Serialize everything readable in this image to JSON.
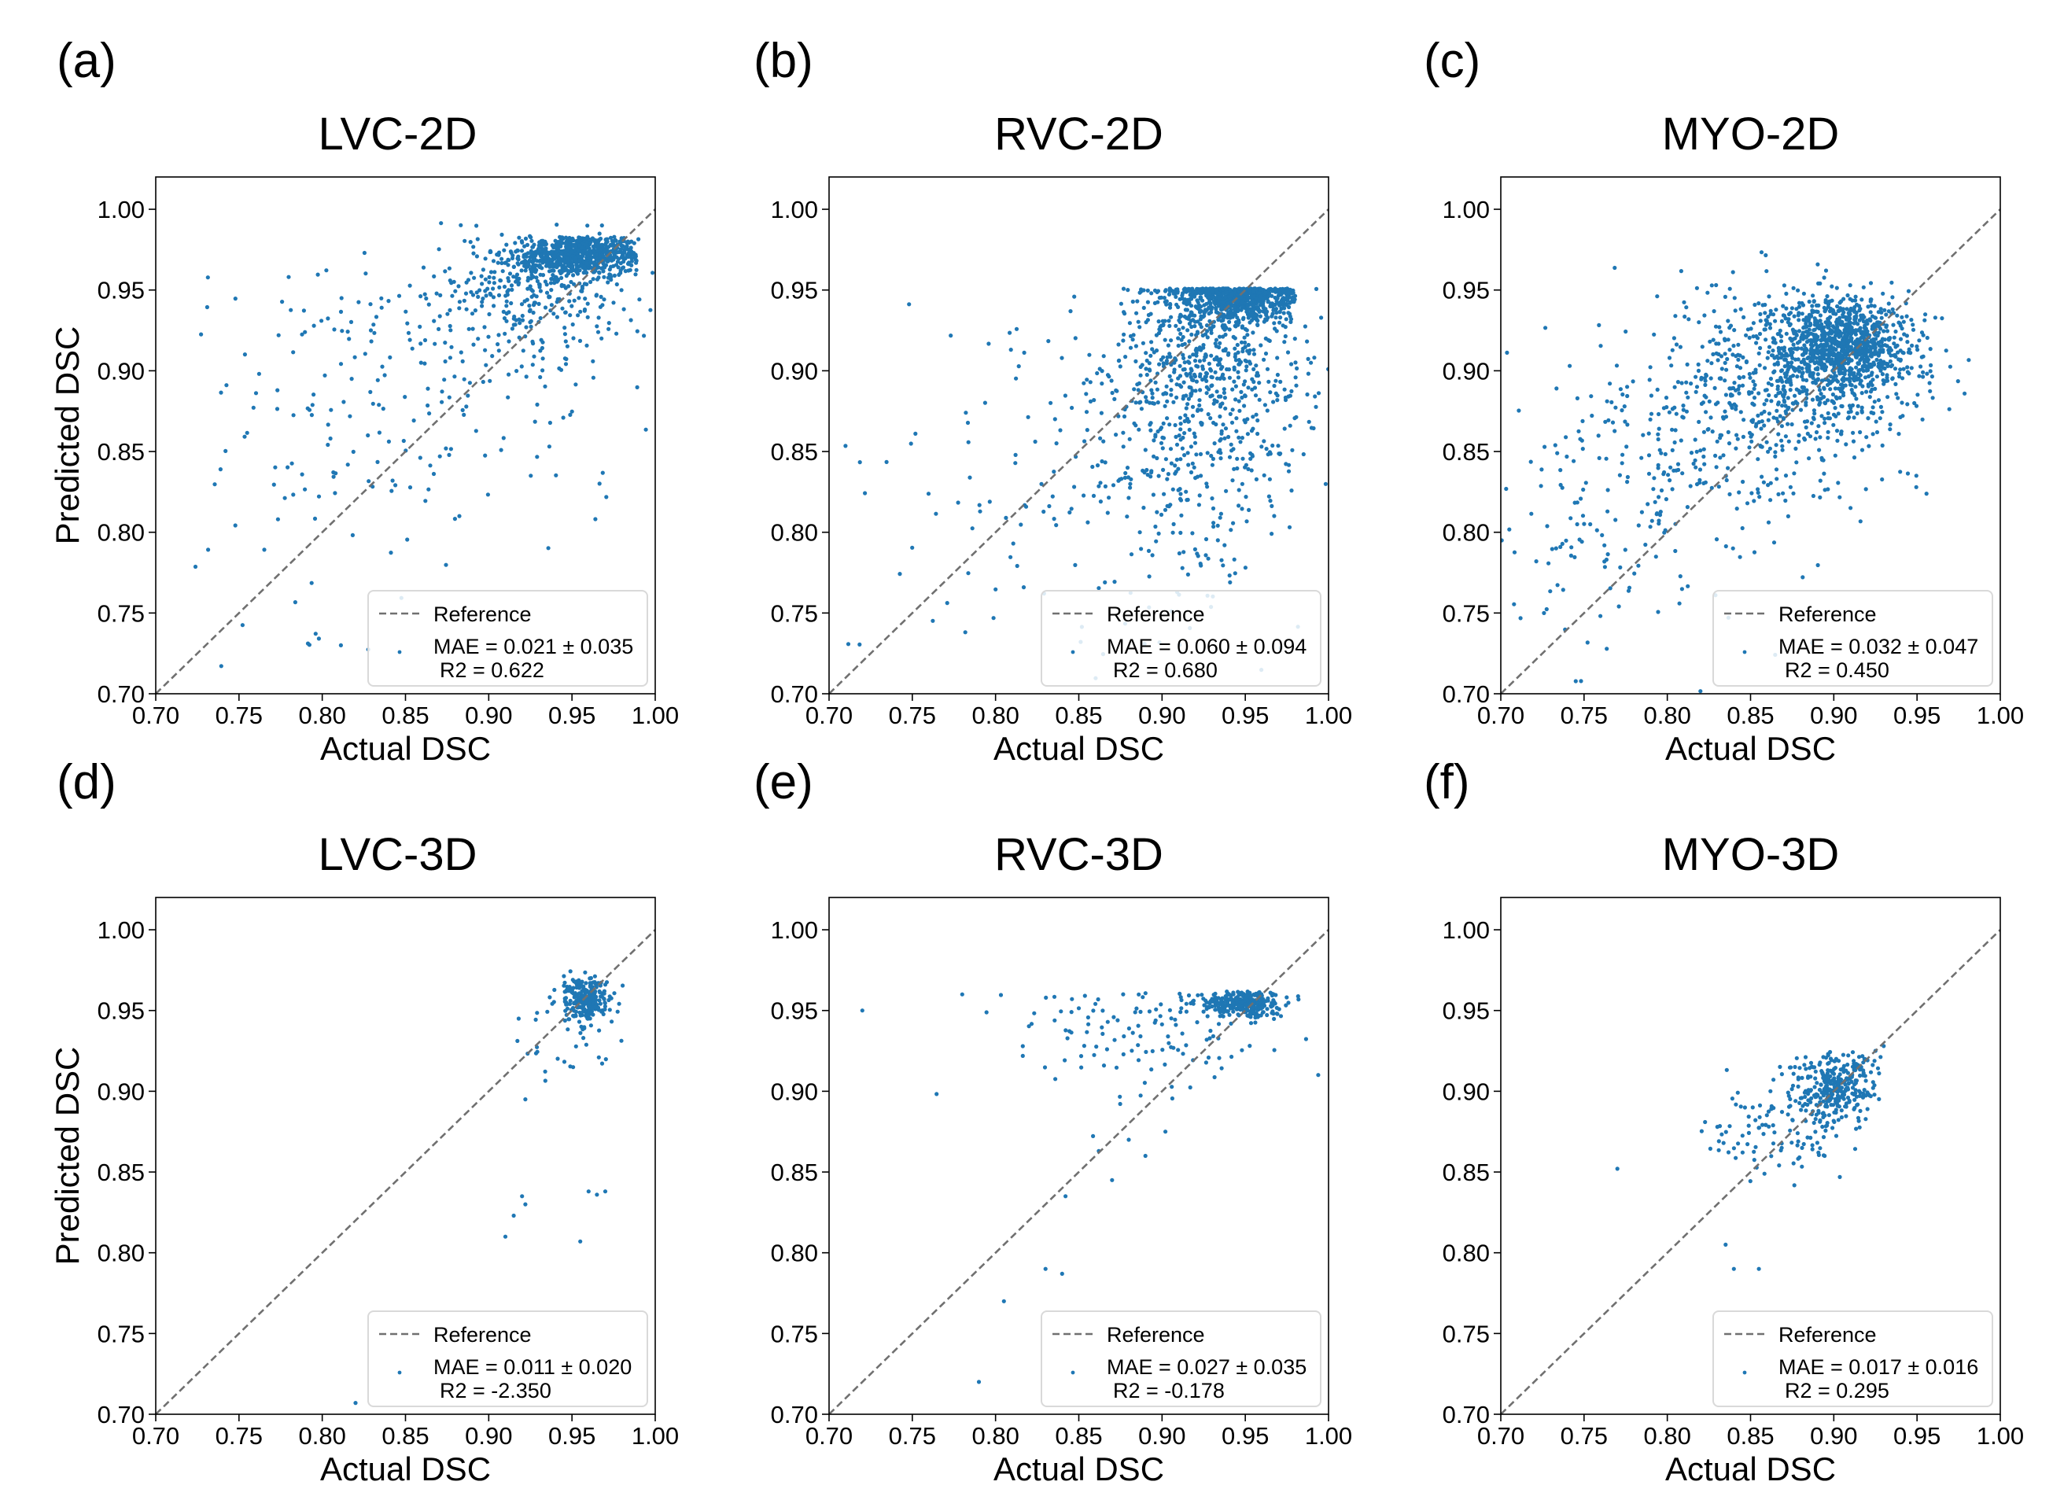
{
  "figure": {
    "colors": {
      "point": "#1f77b4",
      "reference": "#707070",
      "axis": "#000000",
      "legend_border": "#d9d9d9"
    },
    "tick_values": [
      "0.70",
      "0.75",
      "0.80",
      "0.85",
      "0.90",
      "0.95",
      "1.00"
    ],
    "xlabel": "Actual DSC",
    "ylabel": "Predicted DSC",
    "reference_label": "Reference"
  },
  "chart_data": [
    {
      "type": "scatter",
      "panel": "(a)",
      "title": "LVC-2D",
      "xlabel": "Actual DSC",
      "ylabel": "Predicted DSC",
      "xlim": [
        0.7,
        1.0
      ],
      "ylim": [
        0.7,
        1.02
      ],
      "mae": "MAE = 0.021 ± 0.035",
      "r2": "R2 = 0.622",
      "show_xlabel": true,
      "show_ylabel": true,
      "clusters": [
        {
          "cx": 0.955,
          "cy": 0.972,
          "sx": 0.018,
          "sy": 0.006,
          "n": 700,
          "ymax": 0.983,
          "xmax": 0.99
        },
        {
          "cx": 0.925,
          "cy": 0.95,
          "sx": 0.03,
          "sy": 0.018,
          "n": 320
        },
        {
          "cx": 0.87,
          "cy": 0.9,
          "sx": 0.06,
          "sy": 0.045,
          "n": 170
        },
        {
          "cx": 0.8,
          "cy": 0.84,
          "sx": 0.06,
          "sy": 0.06,
          "n": 70
        }
      ]
    },
    {
      "type": "scatter",
      "panel": "(b)",
      "title": "RVC-2D",
      "xlabel": "Actual DSC",
      "ylabel": "Predicted DSC",
      "xlim": [
        0.7,
        1.0
      ],
      "ylim": [
        0.7,
        1.02
      ],
      "mae": "MAE = 0.060 ± 0.094",
      "r2": "R2 = 0.680",
      "show_xlabel": true,
      "show_ylabel": false,
      "clusters": [
        {
          "cx": 0.945,
          "cy": 0.945,
          "sx": 0.02,
          "sy": 0.008,
          "n": 800,
          "ymax": 0.951,
          "xmax": 0.98
        },
        {
          "cx": 0.93,
          "cy": 0.9,
          "sx": 0.03,
          "sy": 0.03,
          "n": 520,
          "ymax": 0.951
        },
        {
          "cx": 0.91,
          "cy": 0.84,
          "sx": 0.035,
          "sy": 0.05,
          "n": 260,
          "ymax": 0.951
        },
        {
          "cx": 0.82,
          "cy": 0.83,
          "sx": 0.06,
          "sy": 0.07,
          "n": 100,
          "ymax": 0.951
        }
      ]
    },
    {
      "type": "scatter",
      "panel": "(c)",
      "title": "MYO-2D",
      "xlabel": "Actual DSC",
      "ylabel": "Predicted DSC",
      "xlim": [
        0.7,
        1.0
      ],
      "ylim": [
        0.7,
        1.02
      ],
      "mae": "MAE = 0.032 ± 0.047",
      "r2": "R2 = 0.450",
      "show_xlabel": true,
      "show_ylabel": false,
      "clusters": [
        {
          "cx": 0.905,
          "cy": 0.915,
          "sx": 0.02,
          "sy": 0.015,
          "n": 1000,
          "ymax": 0.957
        },
        {
          "cx": 0.87,
          "cy": 0.89,
          "sx": 0.04,
          "sy": 0.03,
          "n": 550
        },
        {
          "cx": 0.8,
          "cy": 0.84,
          "sx": 0.05,
          "sy": 0.045,
          "n": 200
        },
        {
          "cx": 0.73,
          "cy": 0.8,
          "sx": 0.03,
          "sy": 0.06,
          "n": 50
        }
      ]
    },
    {
      "type": "scatter",
      "panel": "(d)",
      "title": "LVC-3D",
      "xlabel": "Actual DSC",
      "ylabel": "Predicted DSC",
      "xlim": [
        0.7,
        1.0
      ],
      "ylim": [
        0.7,
        1.02
      ],
      "mae": "MAE = 0.011 ± 0.020",
      "r2": "R2 = -2.350",
      "show_xlabel": true,
      "show_ylabel": true,
      "clusters": [
        {
          "cx": 0.958,
          "cy": 0.958,
          "sx": 0.008,
          "sy": 0.007,
          "n": 240,
          "ymax": 0.985
        },
        {
          "cx": 0.95,
          "cy": 0.93,
          "sx": 0.015,
          "sy": 0.015,
          "n": 30
        }
      ],
      "extra_points": [
        [
          0.92,
          0.835
        ],
        [
          0.922,
          0.83
        ],
        [
          0.915,
          0.823
        ],
        [
          0.91,
          0.81
        ],
        [
          0.96,
          0.838
        ],
        [
          0.965,
          0.836
        ],
        [
          0.97,
          0.838
        ],
        [
          0.955,
          0.807
        ],
        [
          0.82,
          0.707
        ],
        [
          0.918,
          0.945
        ],
        [
          0.922,
          0.895
        ]
      ]
    },
    {
      "type": "scatter",
      "panel": "(e)",
      "title": "RVC-3D",
      "xlabel": "Actual DSC",
      "ylabel": "Predicted DSC",
      "xlim": [
        0.7,
        1.0
      ],
      "ylim": [
        0.7,
        1.02
      ],
      "mae": "MAE = 0.027 ± 0.035",
      "r2": "R2 = -0.178",
      "show_xlabel": true,
      "show_ylabel": false,
      "clusters": [
        {
          "cx": 0.948,
          "cy": 0.954,
          "sx": 0.012,
          "sy": 0.004,
          "n": 300,
          "ymax": 0.962
        },
        {
          "cx": 0.89,
          "cy": 0.935,
          "sx": 0.045,
          "sy": 0.02,
          "n": 120,
          "ymax": 0.961
        }
      ],
      "extra_points": [
        [
          0.72,
          0.95
        ],
        [
          0.78,
          0.96
        ],
        [
          0.79,
          0.72
        ],
        [
          0.805,
          0.77
        ],
        [
          0.83,
          0.79
        ],
        [
          0.84,
          0.787
        ],
        [
          0.842,
          0.835
        ],
        [
          0.862,
          0.863
        ],
        [
          0.87,
          0.845
        ],
        [
          0.88,
          0.87
        ],
        [
          0.902,
          0.875
        ],
        [
          0.89,
          0.86
        ]
      ]
    },
    {
      "type": "scatter",
      "panel": "(f)",
      "title": "MYO-3D",
      "xlabel": "Actual DSC",
      "ylabel": "Predicted DSC",
      "xlim": [
        0.7,
        1.0
      ],
      "ylim": [
        0.7,
        1.02
      ],
      "mae": "MAE = 0.017 ± 0.016",
      "r2": "R2 = 0.295",
      "show_xlabel": true,
      "show_ylabel": false,
      "clusters": [
        {
          "cx": 0.9,
          "cy": 0.902,
          "sx": 0.013,
          "sy": 0.011,
          "n": 320,
          "ymax": 0.932
        },
        {
          "cx": 0.865,
          "cy": 0.875,
          "sx": 0.02,
          "sy": 0.015,
          "n": 100
        }
      ],
      "extra_points": [
        [
          0.77,
          0.852
        ],
        [
          0.835,
          0.805
        ],
        [
          0.84,
          0.79
        ],
        [
          0.855,
          0.79
        ],
        [
          0.925,
          0.925
        ],
        [
          0.93,
          0.928
        ]
      ]
    }
  ]
}
